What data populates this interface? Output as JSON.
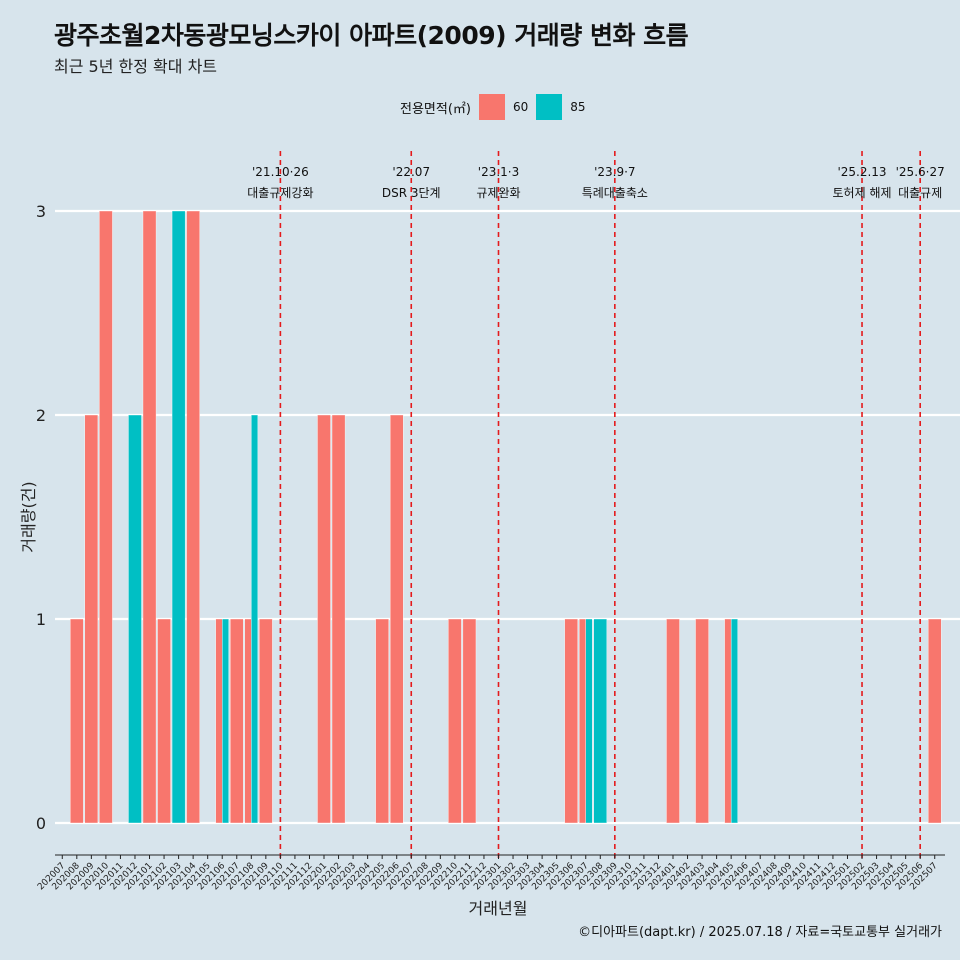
{
  "title": "광주초월2차동광모닝스카이 아파트(2009) 거래량 변화 흐름",
  "subtitle": "최근 5년 한정 확대 차트",
  "caption": "©디아파트(dapt.kr) / 2025.07.18 / 자료=국토교통부 실거래가",
  "legend": {
    "title": "전용면적(㎡)",
    "items": [
      {
        "label": "60",
        "color": "#f8766d"
      },
      {
        "label": "85",
        "color": "#00bfc4"
      }
    ]
  },
  "chart_data": {
    "type": "bar",
    "xlabel": "거래년월",
    "ylabel": "거래량(건)",
    "ylim": [
      0,
      3
    ],
    "yticks": [
      0,
      1,
      2,
      3
    ],
    "grid": true,
    "legend_position": "top",
    "categories": [
      "202007",
      "202008",
      "202009",
      "202010",
      "202011",
      "202012",
      "202101",
      "202102",
      "202103",
      "202104",
      "202105",
      "202106",
      "202107",
      "202108",
      "202109",
      "202110",
      "202111",
      "202112",
      "202201",
      "202202",
      "202203",
      "202204",
      "202205",
      "202206",
      "202207",
      "202208",
      "202209",
      "202210",
      "202211",
      "202212",
      "202301",
      "202302",
      "202303",
      "202304",
      "202305",
      "202306",
      "202307",
      "202308",
      "202309",
      "202310",
      "202311",
      "202312",
      "202401",
      "202402",
      "202403",
      "202404",
      "202405",
      "202406",
      "202407",
      "202408",
      "202409",
      "202410",
      "202411",
      "202412",
      "202501",
      "202502",
      "202503",
      "202504",
      "202505",
      "202506",
      "202507"
    ],
    "series": [
      {
        "name": "60",
        "color": "#f8766d",
        "values": [
          {
            "month": "202008",
            "value": 1
          },
          {
            "month": "202009",
            "value": 2
          },
          {
            "month": "202010",
            "value": 3
          },
          {
            "month": "202101",
            "value": 3
          },
          {
            "month": "202102",
            "value": 1
          },
          {
            "month": "202104",
            "value": 3
          },
          {
            "month": "202106",
            "value": 1
          },
          {
            "month": "202107",
            "value": 1
          },
          {
            "month": "202108",
            "value": 1
          },
          {
            "month": "202109",
            "value": 1
          },
          {
            "month": "202201",
            "value": 2
          },
          {
            "month": "202202",
            "value": 2
          },
          {
            "month": "202205",
            "value": 1
          },
          {
            "month": "202206",
            "value": 2
          },
          {
            "month": "202210",
            "value": 1
          },
          {
            "month": "202211",
            "value": 1
          },
          {
            "month": "202306",
            "value": 1
          },
          {
            "month": "202307",
            "value": 1
          },
          {
            "month": "202401",
            "value": 1
          },
          {
            "month": "202403",
            "value": 1
          },
          {
            "month": "202405",
            "value": 1
          },
          {
            "month": "202507",
            "value": 1
          }
        ]
      },
      {
        "name": "85",
        "color": "#00bfc4",
        "values": [
          {
            "month": "202012",
            "value": 2
          },
          {
            "month": "202103",
            "value": 3
          },
          {
            "month": "202106",
            "value": 1
          },
          {
            "month": "202108",
            "value": 2
          },
          {
            "month": "202307",
            "value": 1
          },
          {
            "month": "202308",
            "value": 1
          },
          {
            "month": "202405",
            "value": 1
          }
        ]
      }
    ],
    "annotations": [
      {
        "x": "202110",
        "date": "'21.10·26",
        "label": "대출규제강화"
      },
      {
        "x": "202207",
        "date": "'22.07",
        "label": "DSR 3단계"
      },
      {
        "x": "202301",
        "date": "'23.1·3",
        "label": "규제완화"
      },
      {
        "x": "202309",
        "date": "'23.9·7",
        "label": "특례대출축소"
      },
      {
        "x": "202502",
        "date": "'25.2.13",
        "label": "토허제 해제"
      },
      {
        "x": "202506",
        "date": "'25.6·27",
        "label": "대출규제"
      }
    ],
    "annotation_line_color": "#e41a1c"
  }
}
